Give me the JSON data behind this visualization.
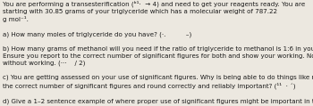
{
  "background_color": "#ece8e0",
  "text_color": "#1a1a1a",
  "figsize": [
    3.5,
    1.19
  ],
  "dpi": 100,
  "fontsize": 5.15,
  "linespacing": 1.38,
  "text": "You are performing a transesterification (ᵇ¹·  → 4) and need to get your reagents ready. You are\nstarting with 30.85 grams of your triglyceride which has a molecular weight of 787.22\ng mol⁻¹.\n\na) How many moles of triglyceride do you have? (·.          –)\n\nb) How many grams of methanol will you need if the ratio of triglyceride to methanol is 1:6 in your reaction?\nEnsure you report to the correct number of significant figures for both and show your working. No marks\nwithout working. (···    / 2)\n\nc) You are getting assessed on your use of significant figures. Why is being able to do things like report to\nthe correct number of significant figures and round correctly and reliably important? (¹¹  · ´)\n\nd) Give a 1–2 sentence example of where proper use of significant figures might be important in the\nworkplace. (           )"
}
